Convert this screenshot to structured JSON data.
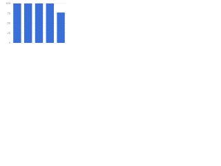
{
  "chart_data": {
    "type": "bar",
    "categories": [
      null,
      null,
      null,
      null,
      null
    ],
    "values": [
      100,
      100,
      100,
      100,
      77
    ],
    "color": "#3a6fd8",
    "ylim": [
      0,
      100
    ],
    "yticks": [
      0,
      25,
      50,
      75,
      100
    ],
    "grid": true
  }
}
